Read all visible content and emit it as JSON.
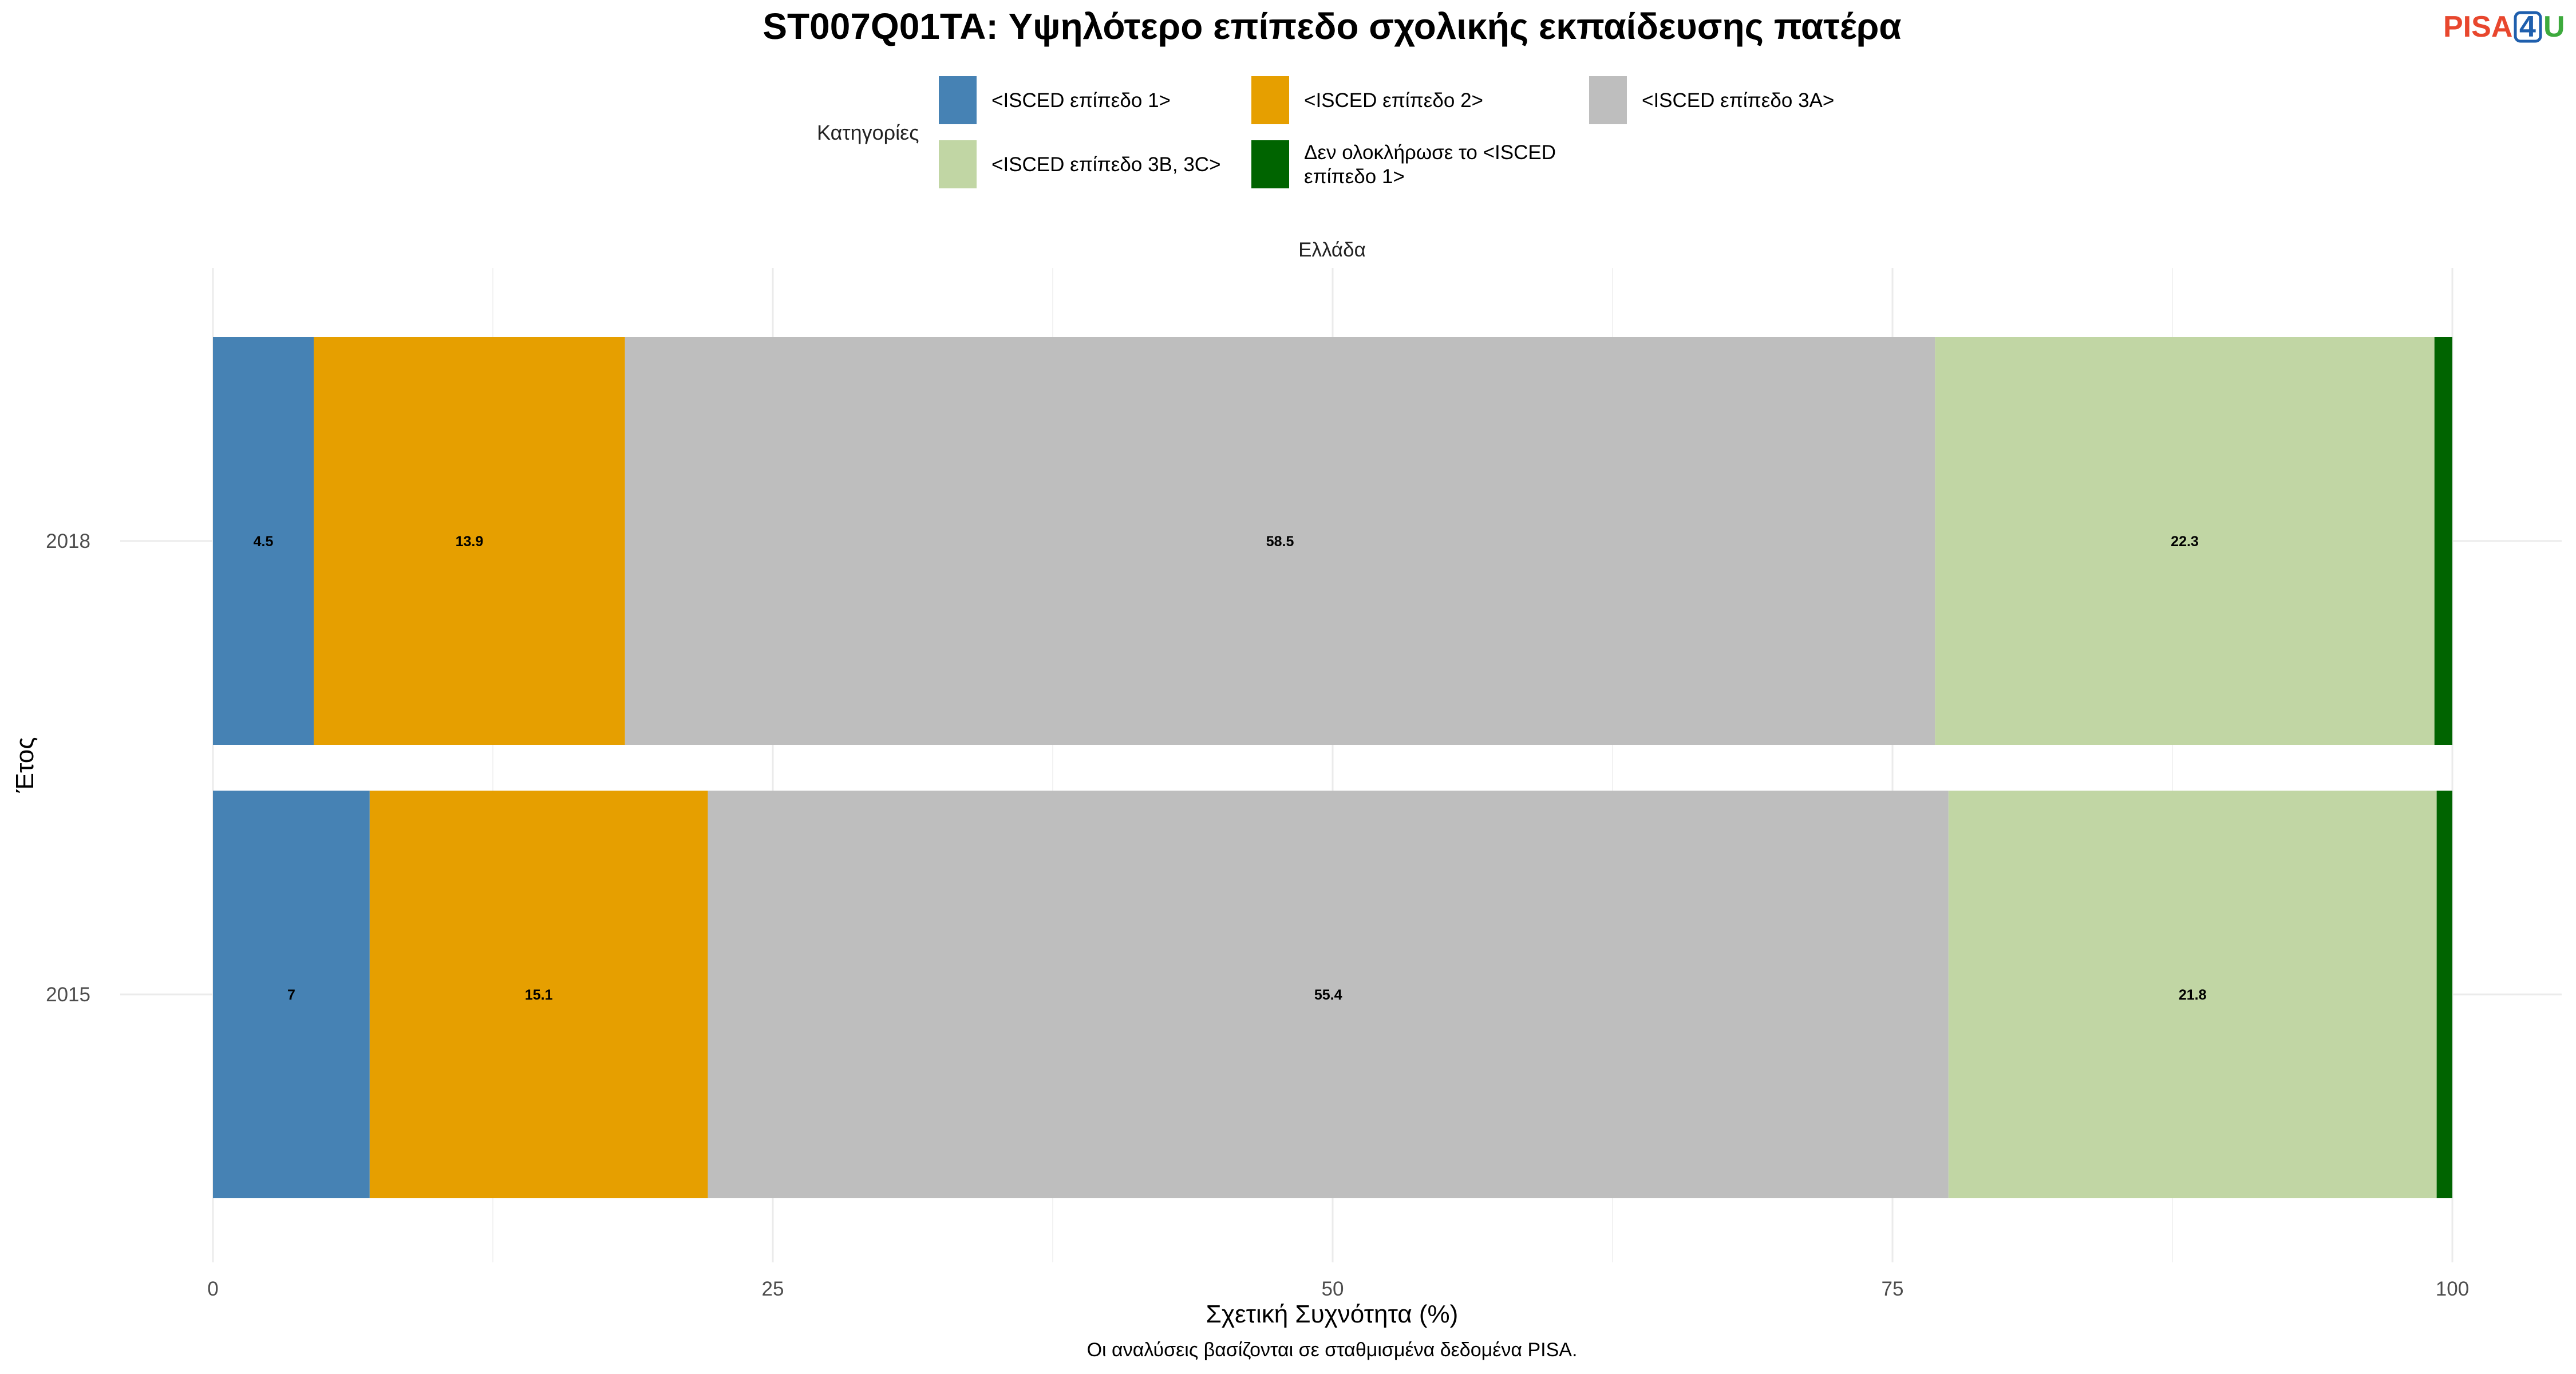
{
  "chart_data": {
    "type": "bar",
    "orientation": "horizontal",
    "stacked": true,
    "title": "ST007Q01TA: Υψηλότερο επίπεδο σχολικής εκπαίδευσης πατέρα",
    "facet_label": "Ελλάδα",
    "xlabel": "Σχετική Συχνότητα (%)",
    "ylabel": "Έτος",
    "caption": "Οι αναλύσεις βασίζονται σε σταθμισμένα δεδομένα PISA.",
    "legend_title": "Κατηγορίες",
    "legend_position": "top",
    "grid": true,
    "xlim": [
      0,
      100
    ],
    "x_ticks": [
      0,
      25,
      50,
      75,
      100
    ],
    "categories": [
      "2018",
      "2015"
    ],
    "series": [
      {
        "name": "<ISCED επίπεδο 1>",
        "color": "#4682B4",
        "values": [
          4.5,
          7
        ],
        "labels": [
          "4.5",
          "7"
        ]
      },
      {
        "name": "<ISCED επίπεδο 2>",
        "color": "#E69F00",
        "values": [
          13.9,
          15.1
        ],
        "labels": [
          "13.9",
          "15.1"
        ]
      },
      {
        "name": "<ISCED επίπεδο 3A>",
        "color": "#BEBEBE",
        "values": [
          58.5,
          55.4
        ],
        "labels": [
          "58.5",
          "55.4"
        ]
      },
      {
        "name": "<ISCED επίπεδο 3B, 3C>",
        "color": "#C1D6A4",
        "values": [
          22.3,
          21.8
        ],
        "labels": [
          "22.3",
          "21.8"
        ]
      },
      {
        "name": "Δεν ολοκλήρωσε το <ISCED επίπεδο 1>",
        "color": "#006400",
        "values": [
          0.8,
          0.7
        ],
        "labels": [
          "",
          ""
        ]
      }
    ],
    "legend_lines": [
      [
        "<ISCED επίπεδο 1>"
      ],
      [
        "<ISCED επίπεδο 2>"
      ],
      [
        "<ISCED επίπεδο 3A>"
      ],
      [
        "<ISCED επίπεδο 3B, 3C>"
      ],
      [
        "Δεν ολοκλήρωσε το <ISCED",
        "επίπεδο 1>"
      ]
    ]
  },
  "logo": {
    "text_a": "PISA",
    "text_b": "4",
    "text_c": "U",
    "color_a": "#E8472E",
    "color_b": "#1F5FAD",
    "color_c": "#3DAA3D"
  }
}
